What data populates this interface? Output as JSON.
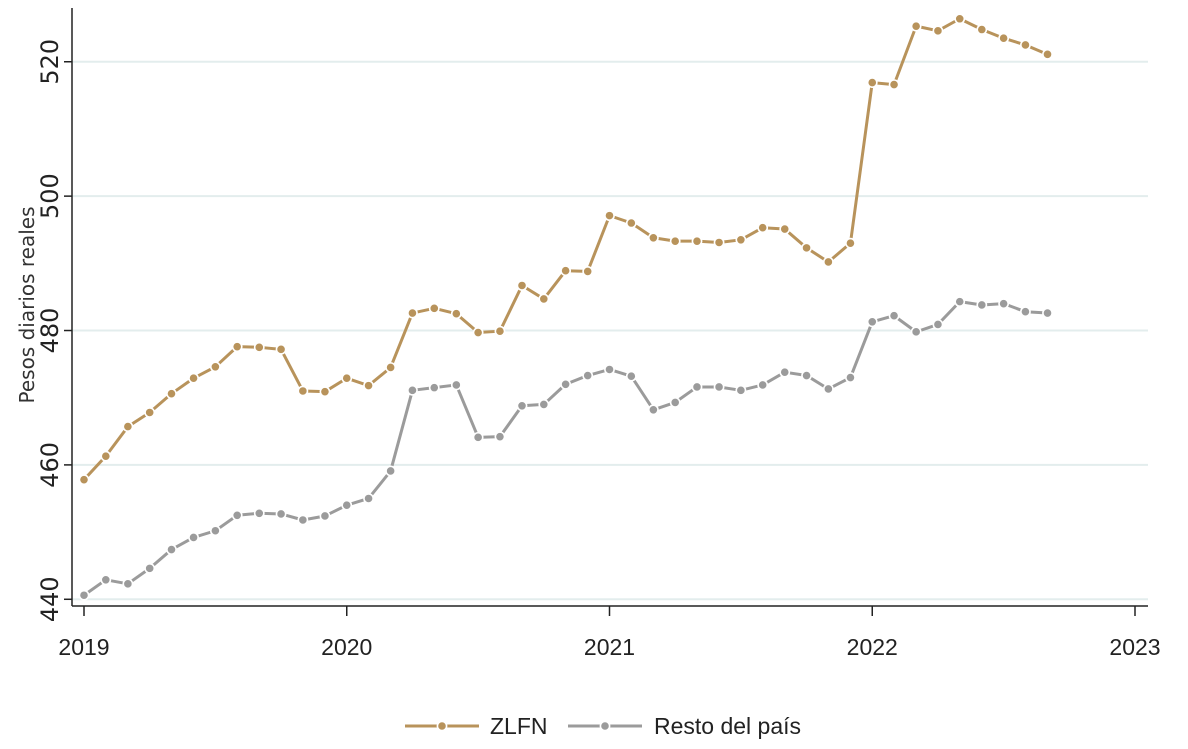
{
  "chart_data": {
    "type": "line",
    "ylabel": "Pesos diarios reales",
    "xlabel": "",
    "ylim": [
      439,
      528
    ],
    "xlim": [
      2019.0,
      2023.05
    ],
    "y_ticks": [
      440,
      460,
      480,
      500,
      520
    ],
    "y_tick_labels": [
      "440",
      "460",
      "480",
      "500",
      "520"
    ],
    "x_ticks": [
      2019,
      2020,
      2021,
      2022,
      2023
    ],
    "x_tick_labels": [
      "2019",
      "2020",
      "2021",
      "2022",
      "2023"
    ],
    "grid": true,
    "legend_position": "bottom",
    "x": [
      2019.0,
      2019.083,
      2019.167,
      2019.25,
      2019.333,
      2019.417,
      2019.5,
      2019.583,
      2019.667,
      2019.75,
      2019.833,
      2019.917,
      2020.0,
      2020.083,
      2020.167,
      2020.25,
      2020.333,
      2020.417,
      2020.5,
      2020.583,
      2020.667,
      2020.75,
      2020.833,
      2020.917,
      2021.0,
      2021.083,
      2021.167,
      2021.25,
      2021.333,
      2021.417,
      2021.5,
      2021.583,
      2021.667,
      2021.75,
      2021.833,
      2021.917,
      2022.0,
      2022.083,
      2022.167,
      2022.25,
      2022.333,
      2022.417,
      2022.5,
      2022.583,
      2022.667
    ],
    "series": [
      {
        "name": "ZLFN",
        "color": "#b8935b",
        "values": [
          457.8,
          461.3,
          465.7,
          467.8,
          470.6,
          472.9,
          474.6,
          477.6,
          477.5,
          477.2,
          471.0,
          470.9,
          472.9,
          471.8,
          474.5,
          482.6,
          483.3,
          482.5,
          479.7,
          479.9,
          486.7,
          484.7,
          488.9,
          488.8,
          497.1,
          496.0,
          493.8,
          493.3,
          493.3,
          493.1,
          493.5,
          495.3,
          495.1,
          492.3,
          490.2,
          493.0,
          516.9,
          516.6,
          525.3,
          524.6,
          526.4,
          524.8,
          523.5,
          522.5,
          521.1
        ]
      },
      {
        "name": "Resto del país",
        "color": "#9b9b9b",
        "values": [
          440.6,
          442.9,
          442.3,
          444.6,
          447.4,
          449.2,
          450.2,
          452.5,
          452.8,
          452.7,
          451.8,
          452.4,
          454.0,
          455.0,
          459.1,
          471.1,
          471.5,
          471.9,
          464.1,
          464.2,
          468.8,
          469.0,
          472.0,
          473.3,
          474.2,
          473.2,
          468.2,
          469.3,
          471.6,
          471.6,
          471.1,
          471.9,
          473.8,
          473.3,
          471.3,
          473.0,
          481.3,
          482.2,
          479.8,
          480.9,
          484.3,
          483.8,
          484.0,
          482.8,
          482.6
        ]
      }
    ]
  }
}
